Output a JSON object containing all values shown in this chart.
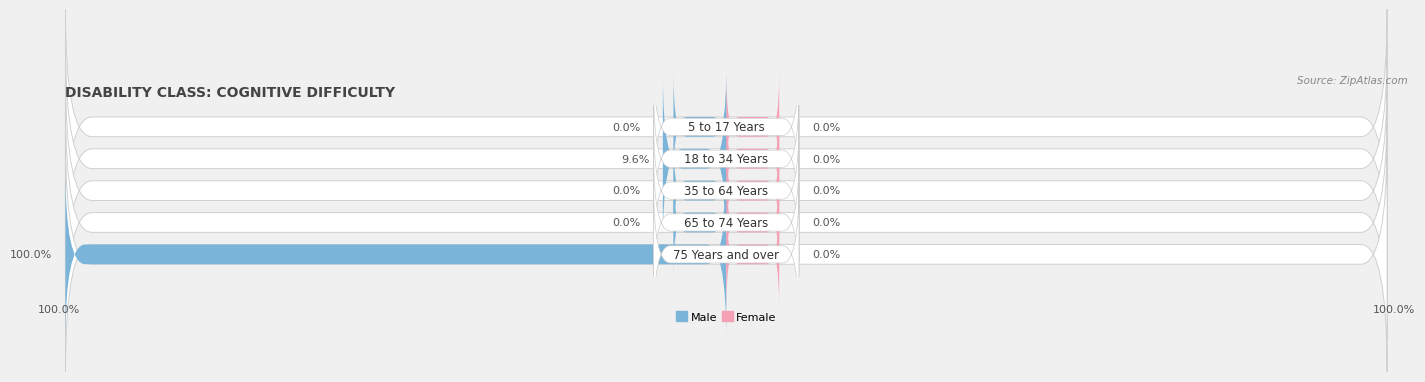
{
  "title": "DISABILITY CLASS: COGNITIVE DIFFICULTY",
  "source": "Source: ZipAtlas.com",
  "categories": [
    "5 to 17 Years",
    "18 to 34 Years",
    "35 to 64 Years",
    "65 to 74 Years",
    "75 Years and over"
  ],
  "male_values": [
    0.0,
    9.6,
    0.0,
    0.0,
    100.0
  ],
  "female_values": [
    0.0,
    0.0,
    0.0,
    0.0,
    0.0
  ],
  "male_color": "#7ab4d8",
  "female_color": "#f4a0b5",
  "bar_bg_color": "#e2e2e2",
  "bar_border_color": "#cccccc",
  "max_val": 100.0,
  "title_fontsize": 10,
  "label_fontsize": 8,
  "cat_fontsize": 8.5,
  "tick_fontsize": 8,
  "source_fontsize": 7.5,
  "bar_height": 0.62,
  "figure_width": 14.06,
  "figure_height": 2.69,
  "background_color": "#f0f0f0",
  "bar_row_bg": "#e8e8e8",
  "bar_row_border": "#d0d0d0"
}
